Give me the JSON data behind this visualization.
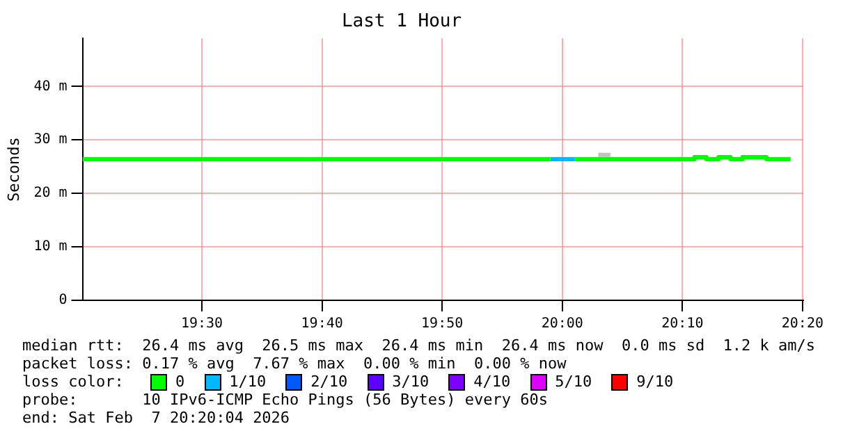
{
  "chart_data": {
    "type": "line",
    "title": "Last 1 Hour",
    "ylabel": "Seconds",
    "legend_title": "loss color:",
    "legend": "bottom",
    "grid": true,
    "marker": "none",
    "line_style": "solid",
    "xlim": [
      19.3344,
      20.3344
    ],
    "xticks": [
      {
        "value": 19.5,
        "label": "19:30"
      },
      {
        "value": 19.6667,
        "label": "19:40"
      },
      {
        "value": 19.8333,
        "label": "19:50"
      },
      {
        "value": 20,
        "label": "20:00"
      },
      {
        "value": 20.1667,
        "label": "20:10"
      },
      {
        "value": 20.3333,
        "label": "20:20"
      }
    ],
    "ylim": [
      0,
      49
    ],
    "yticks": [
      0,
      {
        "value": 10,
        "label": "10 m"
      },
      {
        "value": 20,
        "label": "20 m"
      },
      {
        "value": 30,
        "label": "30 m"
      },
      {
        "value": 40,
        "label": "40 m"
      }
    ],
    "series": [
      {
        "name": "0",
        "color": "#00ff00",
        "x": [
          19.3344,
          19.9833,
          20,
          20.0167,
          20.1833,
          20.1833,
          20.2,
          20.2,
          20.2167,
          20.2167,
          20.2333,
          20.2333,
          20.25,
          20.25,
          20.2833,
          20.2833,
          20.3167
        ],
        "values": [
          26.4,
          26.4,
          null,
          26.4,
          26.4,
          26.8,
          26.8,
          26.4,
          26.4,
          26.8,
          26.8,
          26.4,
          26.4,
          26.8,
          26.8,
          26.4,
          26.4
        ]
      },
      {
        "name": "1/10",
        "color": "#00b8ff",
        "x": [
          19.9833,
          20.0167
        ],
        "values": [
          26.4,
          26.4
        ]
      },
      {
        "name": "2/10",
        "color": "#0059ff"
      },
      {
        "name": "3/10",
        "color": "#5e00ff"
      },
      {
        "name": "4/10",
        "color": "#7e00ff"
      },
      {
        "name": "5/10",
        "color": "#dd00ff"
      },
      {
        "name": "9/10",
        "color": "#ff0000"
      },
      {
        "color": "#c0c0c0",
        "x": [
          20.05,
          20.0667
        ],
        "values": [
          27.2,
          27.2
        ]
      }
    ],
    "annotations": [
      "median rtt:  26.4 ms avg  26.5 ms max  26.4 ms min  26.4 ms now  0.0 ms sd  1.2 k am/s",
      "packet loss: 0.17 % avg  7.67 % max  0.00 % min  0.00 % now",
      "probe:       10 IPv6-ICMP Echo Pings (56 Bytes) every 60s",
      "end: Sat Feb  7 20:20:04 2026"
    ]
  }
}
